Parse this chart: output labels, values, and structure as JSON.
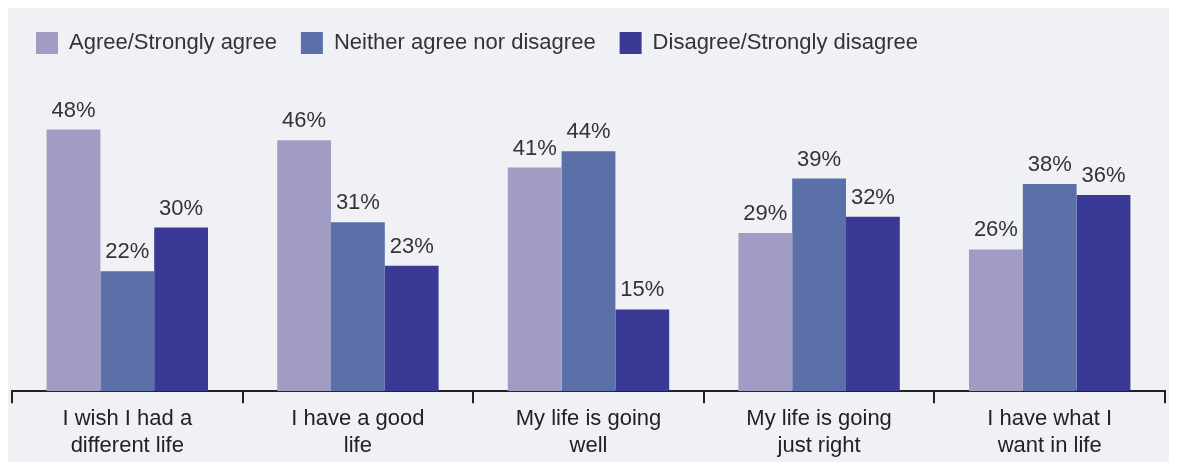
{
  "chart_data": {
    "type": "bar",
    "categories": [
      "I wish I had a different life",
      "I have a good life",
      "My life is going well",
      "My life is going just right",
      "I have what I want in life"
    ],
    "series": [
      {
        "name": "Agree/Strongly agree",
        "color": "#a09cc4",
        "values": [
          48,
          46,
          41,
          29,
          26
        ],
        "value_labels": [
          "48%",
          "46%",
          "41%",
          "29%",
          "26%"
        ]
      },
      {
        "name": "Neither agree nor disagree",
        "color": "#5b70a8",
        "values": [
          22,
          31,
          44,
          39,
          38
        ],
        "value_labels": [
          "22%",
          "31%",
          "44%",
          "39%",
          "38%"
        ]
      },
      {
        "name": "Disagree/Strongly disagree",
        "color": "#3a3a96",
        "values": [
          30,
          23,
          15,
          32,
          36
        ],
        "value_labels": [
          "30%",
          "23%",
          "15%",
          "32%",
          "36%"
        ]
      }
    ],
    "legend": "top left",
    "grid": false
  }
}
